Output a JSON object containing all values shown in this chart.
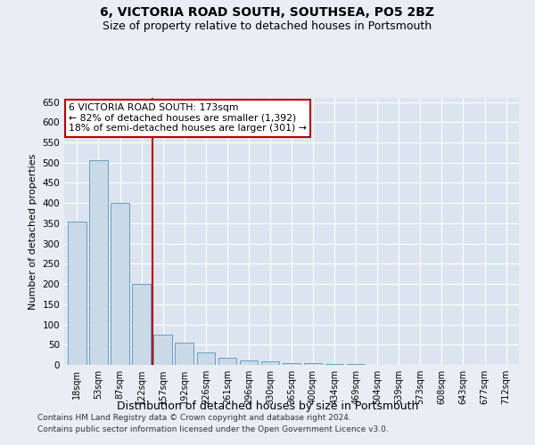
{
  "title": "6, VICTORIA ROAD SOUTH, SOUTHSEA, PO5 2BZ",
  "subtitle": "Size of property relative to detached houses in Portsmouth",
  "xlabel": "Distribution of detached houses by size in Portsmouth",
  "ylabel": "Number of detached properties",
  "categories": [
    "18sqm",
    "53sqm",
    "87sqm",
    "122sqm",
    "157sqm",
    "192sqm",
    "226sqm",
    "261sqm",
    "296sqm",
    "330sqm",
    "365sqm",
    "400sqm",
    "434sqm",
    "469sqm",
    "504sqm",
    "539sqm",
    "573sqm",
    "608sqm",
    "643sqm",
    "677sqm",
    "712sqm"
  ],
  "values": [
    355,
    505,
    400,
    200,
    75,
    55,
    30,
    18,
    10,
    8,
    5,
    5,
    2,
    2,
    1,
    1,
    1,
    0,
    1,
    0,
    1
  ],
  "bar_color": "#c9d9e8",
  "bar_edge_color": "#6a9fc0",
  "vline_x": 3.5,
  "vline_color": "#bb0000",
  "annotation_text": "6 VICTORIA ROAD SOUTH: 173sqm\n← 82% of detached houses are smaller (1,392)\n18% of semi-detached houses are larger (301) →",
  "annotation_box_edgecolor": "#bb0000",
  "ylim": [
    0,
    660
  ],
  "yticks": [
    0,
    50,
    100,
    150,
    200,
    250,
    300,
    350,
    400,
    450,
    500,
    550,
    600,
    650
  ],
  "bg_color": "#e8eef4",
  "plot_bg_color": "#dce5ef",
  "grid_color": "#ffffff",
  "title_fontsize": 10,
  "subtitle_fontsize": 9,
  "ylabel_fontsize": 8,
  "xlabel_fontsize": 9,
  "footer_line1": "Contains HM Land Registry data © Crown copyright and database right 2024.",
  "footer_line2": "Contains public sector information licensed under the Open Government Licence v3.0."
}
